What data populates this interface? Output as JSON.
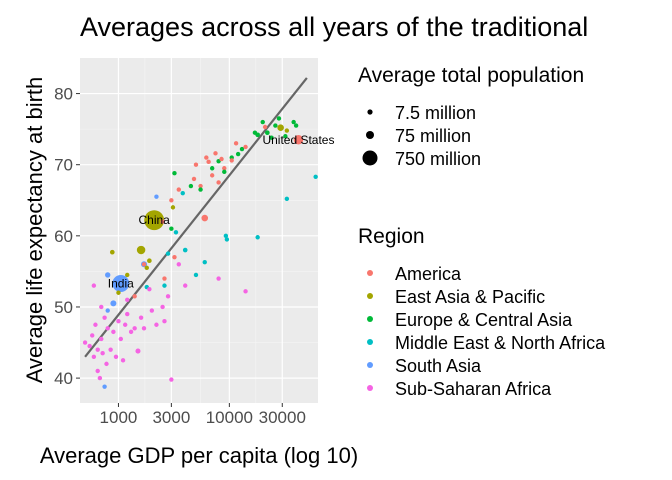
{
  "chart_data": {
    "type": "scatter",
    "title": "Averages across all years of the traditional",
    "xlabel": "Average GDP per capita (log 10)",
    "ylabel": "Average life expectancy at birth",
    "x_scale": "log10",
    "xlim": [
      450,
      63000
    ],
    "ylim": [
      36.5,
      85
    ],
    "x_ticks": [
      1000,
      3000,
      10000,
      30000
    ],
    "x_tick_labels": [
      "1000",
      "3000",
      "10000",
      "30000"
    ],
    "y_ticks": [
      40,
      50,
      60,
      70,
      80
    ],
    "y_tick_labels": [
      "40",
      "50",
      "60",
      "70",
      "80"
    ],
    "grid": true,
    "panel_background": "#ebebeb",
    "trend_line": {
      "color": "#666666",
      "points": [
        {
          "x": 500,
          "y": 43.0
        },
        {
          "x": 50000,
          "y": 82.2
        }
      ]
    },
    "size_legend": {
      "title": "Average total population",
      "entries": [
        {
          "label": "7.5 million",
          "value": 7.5
        },
        {
          "label": "75 million",
          "value": 75
        },
        {
          "label": "750 million",
          "value": 750
        }
      ]
    },
    "color_legend": {
      "title": "Region",
      "placement": "right"
    },
    "series": [
      {
        "name": "America",
        "color": "#F8766D",
        "points": [
          {
            "x": 42000,
            "y": 73.5,
            "pop": 250
          },
          {
            "x": 21000,
            "y": 75.3,
            "pop": 25
          },
          {
            "x": 6000,
            "y": 62.5,
            "pop": 120
          },
          {
            "x": 7000,
            "y": 68.5,
            "pop": 50
          },
          {
            "x": 6500,
            "y": 70.4,
            "pop": 30
          },
          {
            "x": 6200,
            "y": 71.0,
            "pop": 8
          },
          {
            "x": 5500,
            "y": 67.0,
            "pop": 12
          },
          {
            "x": 9000,
            "y": 69.5,
            "pop": 18
          },
          {
            "x": 8500,
            "y": 70.8,
            "pop": 6
          },
          {
            "x": 10500,
            "y": 70.6,
            "pop": 8
          },
          {
            "x": 7500,
            "y": 71.6,
            "pop": 3
          },
          {
            "x": 4800,
            "y": 68.0,
            "pop": 8
          },
          {
            "x": 5000,
            "y": 70.0,
            "pop": 4
          },
          {
            "x": 3500,
            "y": 66.5,
            "pop": 6
          },
          {
            "x": 3000,
            "y": 65.0,
            "pop": 3
          },
          {
            "x": 3200,
            "y": 57.0,
            "pop": 10
          },
          {
            "x": 2600,
            "y": 54.0,
            "pop": 6
          },
          {
            "x": 2500,
            "y": 62.0,
            "pop": 4
          },
          {
            "x": 1700,
            "y": 56.0,
            "pop": 3
          },
          {
            "x": 1400,
            "y": 51.5,
            "pop": 7
          },
          {
            "x": 14000,
            "y": 72.5,
            "pop": 4
          },
          {
            "x": 11500,
            "y": 73.0,
            "pop": 3
          },
          {
            "x": 8000,
            "y": 67.5,
            "pop": 2
          }
        ]
      },
      {
        "name": "East Asia & Pacific",
        "color": "#A3A500",
        "points": [
          {
            "x": 2100,
            "y": 62.2,
            "pop": 1100
          },
          {
            "x": 29000,
            "y": 75.2,
            "pop": 120
          },
          {
            "x": 33000,
            "y": 74.8,
            "pop": 20
          },
          {
            "x": 1600,
            "y": 58.0,
            "pop": 200
          },
          {
            "x": 880,
            "y": 57.7,
            "pop": 60
          },
          {
            "x": 1900,
            "y": 56.5,
            "pop": 60
          },
          {
            "x": 1200,
            "y": 54.5,
            "pop": 40
          },
          {
            "x": 1000,
            "y": 52.0,
            "pop": 30
          },
          {
            "x": 3100,
            "y": 64.0,
            "pop": 20
          },
          {
            "x": 1800,
            "y": 55.5,
            "pop": 8
          }
        ]
      },
      {
        "name": "Europe & Central Asia",
        "color": "#00BA38",
        "points": [
          {
            "x": 18000,
            "y": 74.2,
            "pop": 60
          },
          {
            "x": 22000,
            "y": 74.5,
            "pop": 60
          },
          {
            "x": 26000,
            "y": 75.5,
            "pop": 50
          },
          {
            "x": 24000,
            "y": 73.8,
            "pop": 55
          },
          {
            "x": 17000,
            "y": 74.5,
            "pop": 15
          },
          {
            "x": 20000,
            "y": 76.0,
            "pop": 10
          },
          {
            "x": 28000,
            "y": 76.5,
            "pop": 5
          },
          {
            "x": 32000,
            "y": 74.0,
            "pop": 5
          },
          {
            "x": 40000,
            "y": 75.5,
            "pop": 4
          },
          {
            "x": 38000,
            "y": 76.0,
            "pop": 3
          },
          {
            "x": 12000,
            "y": 71.5,
            "pop": 30
          },
          {
            "x": 10500,
            "y": 71.0,
            "pop": 15
          },
          {
            "x": 8000,
            "y": 70.5,
            "pop": 10
          },
          {
            "x": 7000,
            "y": 69.5,
            "pop": 8
          },
          {
            "x": 5500,
            "y": 66.5,
            "pop": 10
          },
          {
            "x": 4500,
            "y": 67.0,
            "pop": 5
          },
          {
            "x": 3200,
            "y": 68.8,
            "pop": 3
          },
          {
            "x": 3000,
            "y": 61.0,
            "pop": 4
          },
          {
            "x": 13000,
            "y": 72.2,
            "pop": 6
          },
          {
            "x": 9000,
            "y": 69.0,
            "pop": 4
          }
        ]
      },
      {
        "name": "Middle East & North Africa",
        "color": "#00BFC4",
        "points": [
          {
            "x": 60000,
            "y": 68.3,
            "pop": 2
          },
          {
            "x": 33000,
            "y": 65.2,
            "pop": 2
          },
          {
            "x": 18000,
            "y": 59.8,
            "pop": 2
          },
          {
            "x": 9500,
            "y": 59.5,
            "pop": 3
          },
          {
            "x": 9300,
            "y": 60.0,
            "pop": 3
          },
          {
            "x": 6000,
            "y": 56.3,
            "pop": 20
          },
          {
            "x": 5000,
            "y": 54.5,
            "pop": 40
          },
          {
            "x": 4000,
            "y": 58.0,
            "pop": 60
          },
          {
            "x": 2800,
            "y": 57.5,
            "pop": 25
          },
          {
            "x": 3300,
            "y": 60.5,
            "pop": 15
          },
          {
            "x": 1800,
            "y": 52.8,
            "pop": 4
          },
          {
            "x": 3800,
            "y": 66.0,
            "pop": 5
          },
          {
            "x": 2600,
            "y": 53.0,
            "pop": 3
          }
        ]
      },
      {
        "name": "South Asia",
        "color": "#619CFF",
        "points": [
          {
            "x": 1050,
            "y": 53.3,
            "pop": 800
          },
          {
            "x": 1700,
            "y": 56.0,
            "pop": 100
          },
          {
            "x": 800,
            "y": 54.5,
            "pop": 80
          },
          {
            "x": 900,
            "y": 50.5,
            "pop": 100
          },
          {
            "x": 800,
            "y": 49.5,
            "pop": 20
          },
          {
            "x": 2200,
            "y": 65.5,
            "pop": 4
          },
          {
            "x": 750,
            "y": 38.8,
            "pop": 4
          }
        ]
      },
      {
        "name": "Sub-Saharan Africa",
        "color": "#F564E3",
        "points": [
          {
            "x": 500,
            "y": 45.0,
            "pop": 5
          },
          {
            "x": 550,
            "y": 44.5,
            "pop": 8
          },
          {
            "x": 580,
            "y": 46.0,
            "pop": 6
          },
          {
            "x": 600,
            "y": 43.0,
            "pop": 4
          },
          {
            "x": 620,
            "y": 47.5,
            "pop": 7
          },
          {
            "x": 650,
            "y": 41.0,
            "pop": 5
          },
          {
            "x": 680,
            "y": 40.0,
            "pop": 6
          },
          {
            "x": 700,
            "y": 45.5,
            "pop": 10
          },
          {
            "x": 720,
            "y": 43.5,
            "pop": 3
          },
          {
            "x": 750,
            "y": 48.5,
            "pop": 8
          },
          {
            "x": 780,
            "y": 42.0,
            "pop": 4
          },
          {
            "x": 800,
            "y": 47.0,
            "pop": 9
          },
          {
            "x": 850,
            "y": 44.0,
            "pop": 5
          },
          {
            "x": 900,
            "y": 46.5,
            "pop": 6
          },
          {
            "x": 950,
            "y": 43.0,
            "pop": 4
          },
          {
            "x": 1000,
            "y": 48.0,
            "pop": 8
          },
          {
            "x": 1050,
            "y": 45.5,
            "pop": 3
          },
          {
            "x": 1100,
            "y": 42.5,
            "pop": 6
          },
          {
            "x": 1150,
            "y": 47.5,
            "pop": 5
          },
          {
            "x": 1200,
            "y": 49.0,
            "pop": 7
          },
          {
            "x": 1300,
            "y": 46.5,
            "pop": 4
          },
          {
            "x": 1400,
            "y": 47.0,
            "pop": 8
          },
          {
            "x": 1500,
            "y": 43.8,
            "pop": 70
          },
          {
            "x": 1600,
            "y": 48.5,
            "pop": 6
          },
          {
            "x": 1700,
            "y": 47.0,
            "pop": 5
          },
          {
            "x": 1900,
            "y": 52.5,
            "pop": 4
          },
          {
            "x": 2000,
            "y": 49.5,
            "pop": 6
          },
          {
            "x": 2200,
            "y": 47.5,
            "pop": 4
          },
          {
            "x": 2500,
            "y": 50.0,
            "pop": 3
          },
          {
            "x": 2800,
            "y": 51.5,
            "pop": 5
          },
          {
            "x": 3000,
            "y": 39.8,
            "pop": 4
          },
          {
            "x": 3500,
            "y": 56.0,
            "pop": 3
          },
          {
            "x": 4000,
            "y": 53.0,
            "pop": 2
          },
          {
            "x": 600,
            "y": 53.0,
            "pop": 3
          },
          {
            "x": 700,
            "y": 50.0,
            "pop": 4
          },
          {
            "x": 1200,
            "y": 51.0,
            "pop": 5
          },
          {
            "x": 14000,
            "y": 52.2,
            "pop": 2
          },
          {
            "x": 8000,
            "y": 54.0,
            "pop": 2
          },
          {
            "x": 2600,
            "y": 48.0,
            "pop": 5
          },
          {
            "x": 650,
            "y": 44.0,
            "pop": 5
          }
        ]
      }
    ],
    "annotations": [
      {
        "text": "United States",
        "x": 42000,
        "y": 73.5
      },
      {
        "text": "China",
        "x": 2100,
        "y": 62.2
      },
      {
        "text": "India",
        "x": 1050,
        "y": 53.3
      }
    ]
  }
}
